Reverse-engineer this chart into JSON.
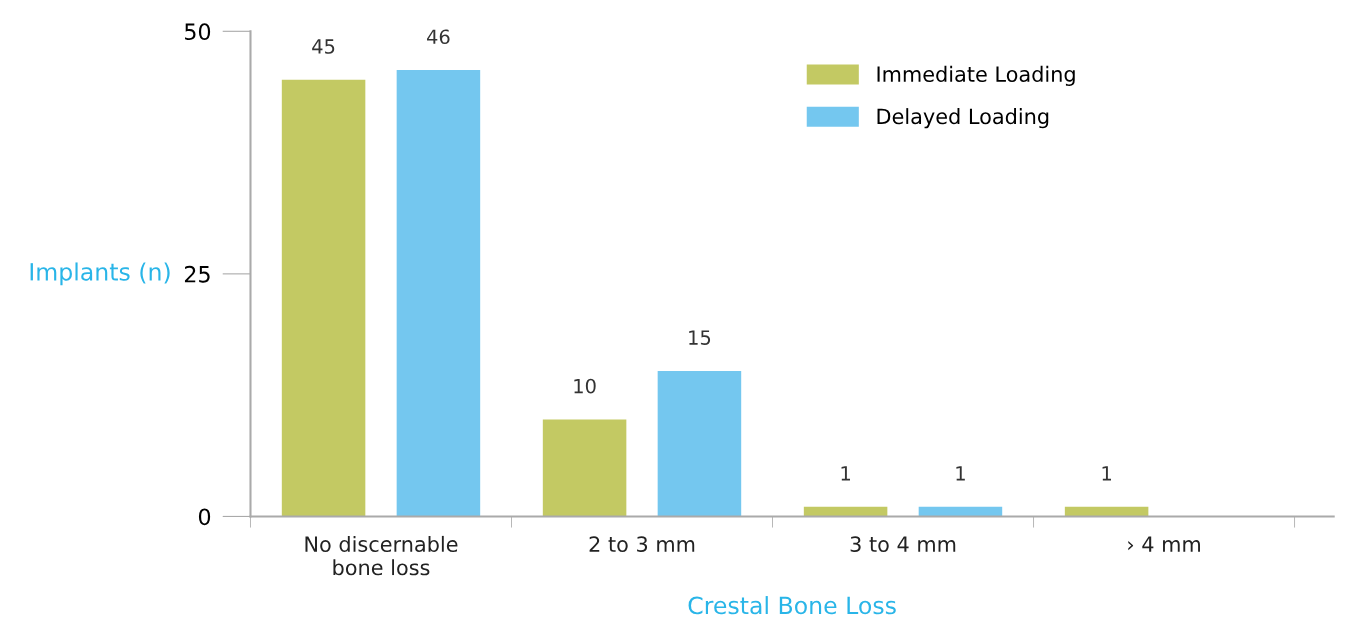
{
  "chart_data": {
    "type": "bar",
    "categories": [
      "No discernable\nbone loss",
      "2 to 3 mm",
      "3 to 4 mm",
      "› 4 mm"
    ],
    "series": [
      {
        "name": "Immediate Loading",
        "color": "#c3c963",
        "values": [
          45,
          10,
          1,
          1
        ]
      },
      {
        "name": "Delayed Loading",
        "color": "#74c7ef",
        "values": [
          46,
          15,
          1,
          null
        ]
      }
    ],
    "xlabel": "Crestal Bone Loss",
    "ylabel": "Implants (n)",
    "ylim": [
      0,
      50
    ],
    "yticks": [
      0,
      25,
      50
    ],
    "data_labels": true,
    "legend": "top right",
    "grid": false
  }
}
